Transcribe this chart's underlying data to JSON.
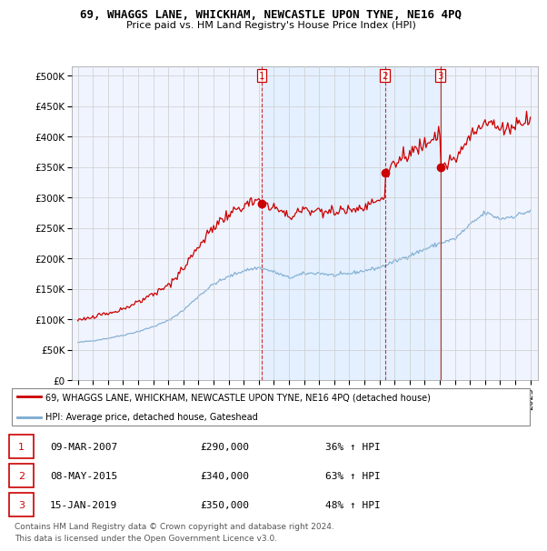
{
  "title": "69, WHAGGS LANE, WHICKHAM, NEWCASTLE UPON TYNE, NE16 4PQ",
  "subtitle": "Price paid vs. HM Land Registry's House Price Index (HPI)",
  "legend_line1": "69, WHAGGS LANE, WHICKHAM, NEWCASTLE UPON TYNE, NE16 4PQ (detached house)",
  "legend_line2": "HPI: Average price, detached house, Gateshead",
  "footer1": "Contains HM Land Registry data © Crown copyright and database right 2024.",
  "footer2": "This data is licensed under the Open Government Licence v3.0.",
  "sale_color": "#cc0000",
  "hpi_color": "#7aaad0",
  "transactions": [
    {
      "num": 1,
      "date": "09-MAR-2007",
      "price": 290000,
      "pct": "36%",
      "dir": "↑"
    },
    {
      "num": 2,
      "date": "08-MAY-2015",
      "price": 340000,
      "pct": "63%",
      "dir": "↑"
    },
    {
      "num": 3,
      "date": "15-JAN-2019",
      "price": 350000,
      "pct": "48%",
      "dir": "↑"
    }
  ],
  "vline_dates": [
    2007.19,
    2015.36,
    2019.04
  ],
  "sale_years": [
    2007.19,
    2015.36,
    2019.04
  ],
  "sale_prices": [
    290000,
    340000,
    350000
  ],
  "ylim": [
    0,
    515000
  ],
  "yticks": [
    0,
    50000,
    100000,
    150000,
    200000,
    250000,
    300000,
    350000,
    400000,
    450000,
    500000
  ],
  "ytick_labels": [
    "£0",
    "£50K",
    "£100K",
    "£150K",
    "£200K",
    "£250K",
    "£300K",
    "£350K",
    "£400K",
    "£450K",
    "£500K"
  ],
  "xlim_start": 1994.6,
  "xlim_end": 2025.5,
  "bg_shade_color": "#ddeeff",
  "chart_bg": "#f0f4ff"
}
